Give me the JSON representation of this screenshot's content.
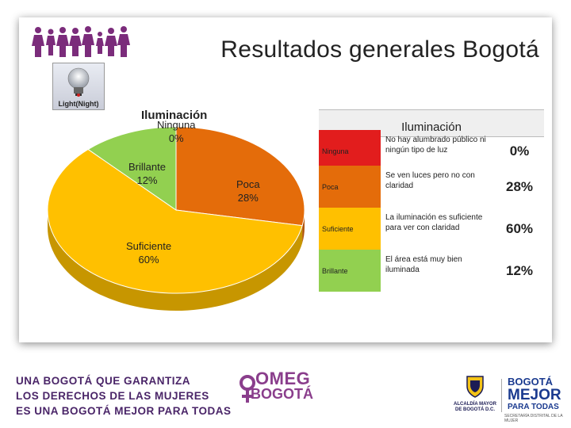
{
  "slide": {
    "title": "Resultados generales Bogotá",
    "logo_label": "Light(Night)"
  },
  "chart_data": {
    "type": "pie",
    "title": "Iluminación",
    "categories": [
      "Ninguna",
      "Poca",
      "Suficiente",
      "Brillante"
    ],
    "values": [
      0,
      28,
      60,
      12
    ],
    "value_labels": [
      "0%",
      "28%",
      "60%",
      "12%"
    ],
    "colors": [
      "#e21d1d",
      "#e46c0a",
      "#ffc000",
      "#92d050"
    ]
  },
  "table": {
    "header": "Iluminación",
    "rows": [
      {
        "level": "Ninguna",
        "description": "No hay alumbrado público ni ningún tipo de luz",
        "percent": "0%",
        "color": "#e21d1d"
      },
      {
        "level": "Poca",
        "description": "Se ven luces pero no con claridad",
        "percent": "28%",
        "color": "#e46c0a"
      },
      {
        "level": "Suficiente",
        "description": "La iluminación es suficiente para ver con claridad",
        "percent": "60%",
        "color": "#ffc000"
      },
      {
        "level": "Brillante",
        "description": "El área está muy bien iluminada",
        "percent": "12%",
        "color": "#92d050"
      }
    ]
  },
  "footer": {
    "line1": "UNA BOGOTÁ QUE GARANTIZA",
    "line2": "LOS DERECHOS DE LAS MUJERES",
    "line3": "ES UNA BOGOTÁ MEJOR PARA TODAS",
    "omeg_line1": "OMEG",
    "omeg_line2": "BOGOTÁ",
    "alcaldia": "ALCALDÍA MAYOR DE BOGOTÁ D.C.",
    "bogota_line1": "BOGOTÁ",
    "bogota_line2": "MEJOR",
    "bogota_line3": "PARA TODAS",
    "bogota_sub": "SECRETARÍA DISTRITAL DE LA MUJER"
  },
  "colors": {
    "brand_purple": "#8a3e8c",
    "footer_text": "#4a2568"
  }
}
